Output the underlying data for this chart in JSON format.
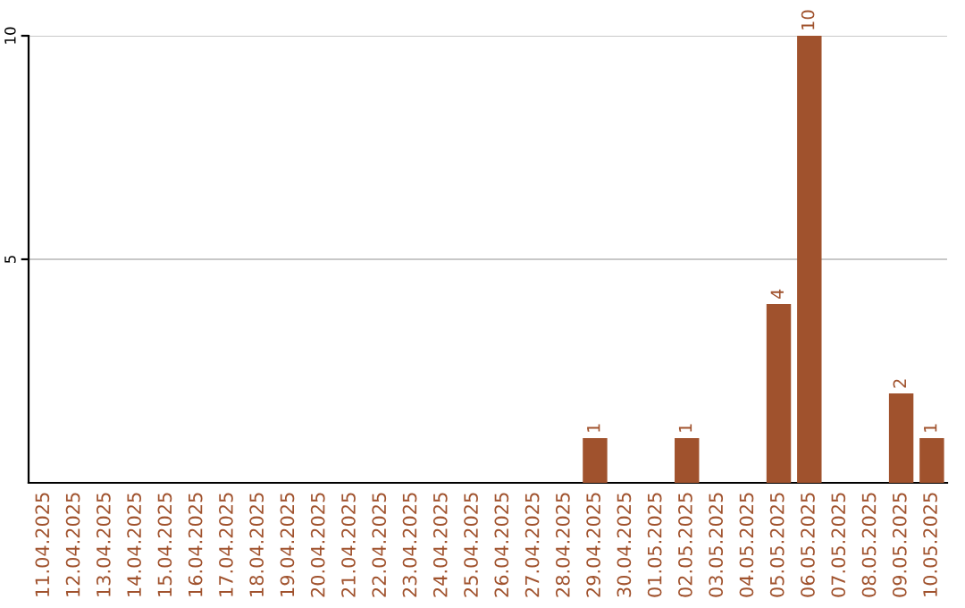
{
  "chart_data": {
    "type": "bar",
    "categories": [
      "11.04.2025",
      "12.04.2025",
      "13.04.2025",
      "14.04.2025",
      "15.04.2025",
      "16.04.2025",
      "17.04.2025",
      "18.04.2025",
      "19.04.2025",
      "20.04.2025",
      "21.04.2025",
      "22.04.2025",
      "23.04.2025",
      "24.04.2025",
      "25.04.2025",
      "26.04.2025",
      "27.04.2025",
      "28.04.2025",
      "29.04.2025",
      "30.04.2025",
      "01.05.2025",
      "02.05.2025",
      "03.05.2025",
      "04.05.2025",
      "05.05.2025",
      "06.05.2025",
      "07.05.2025",
      "08.05.2025",
      "09.05.2025",
      "10.05.2025"
    ],
    "values": [
      0,
      0,
      0,
      0,
      0,
      0,
      0,
      0,
      0,
      0,
      0,
      0,
      0,
      0,
      0,
      0,
      0,
      0,
      1,
      0,
      0,
      1,
      0,
      0,
      4,
      10,
      0,
      0,
      2,
      1
    ],
    "value_labels": [
      null,
      null,
      null,
      null,
      null,
      null,
      null,
      null,
      null,
      null,
      null,
      null,
      null,
      null,
      null,
      null,
      null,
      null,
      "1",
      null,
      null,
      "1",
      null,
      null,
      "4",
      "10",
      null,
      null,
      "2",
      "1"
    ],
    "color": "#a0522d",
    "ylim": [
      0,
      10
    ],
    "yticks": [
      5,
      10
    ],
    "grid": "y",
    "legend": false
  }
}
